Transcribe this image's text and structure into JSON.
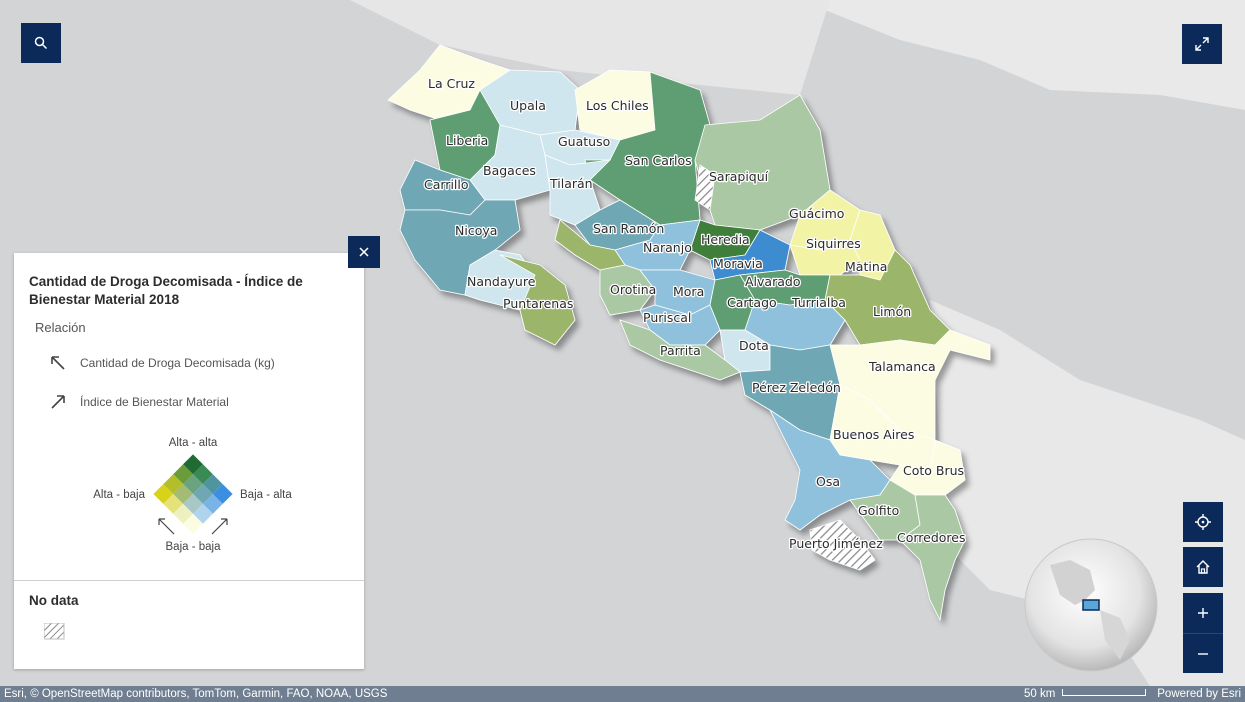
{
  "map": {
    "regions": [
      {
        "name": "La Cruz",
        "color": "#fbfce2"
      },
      {
        "name": "Upala",
        "color": "#cfe6ef"
      },
      {
        "name": "Los Chiles",
        "color": "#fbfce2"
      },
      {
        "name": "Liberia",
        "color": "#5e9e72"
      },
      {
        "name": "Guatuso",
        "color": "#cfe6ef"
      },
      {
        "name": "San Carlos",
        "color": "#5e9e72"
      },
      {
        "name": "Sarapiquí",
        "color": "#aac8a4"
      },
      {
        "name": "Bagaces",
        "color": "#cfe6ef"
      },
      {
        "name": "Carrillo",
        "color": "#6fa7b4"
      },
      {
        "name": "Tilarán",
        "color": "#cfe6ef"
      },
      {
        "name": "Guácimo",
        "color": "#f3f3a6"
      },
      {
        "name": "Nicoya",
        "color": "#6fa7b4"
      },
      {
        "name": "San Ramón",
        "color": "#6fa7b4"
      },
      {
        "name": "Heredia",
        "color": "#3f7f3a"
      },
      {
        "name": "Siquirres",
        "color": "#f3f3a6"
      },
      {
        "name": "Naranjo",
        "color": "#8fc0dc"
      },
      {
        "name": "Moravia",
        "color": "#3d8ccf"
      },
      {
        "name": "Matina",
        "color": "#f3f3a6"
      },
      {
        "name": "Nandayure",
        "color": "#cfe6ef"
      },
      {
        "name": "Alvarado",
        "color": "#5e9e72"
      },
      {
        "name": "Puntarenas",
        "color": "#9bb56a"
      },
      {
        "name": "Orotina",
        "color": "#aac8a4"
      },
      {
        "name": "Mora",
        "color": "#8fc0dc"
      },
      {
        "name": "Cartago",
        "color": "#5e9e72"
      },
      {
        "name": "Turrialba",
        "color": "#8fc0dc"
      },
      {
        "name": "Limón",
        "color": "#9bb56a"
      },
      {
        "name": "Puriscal",
        "color": "#8fc0dc"
      },
      {
        "name": "Dota",
        "color": "#cfe6ef"
      },
      {
        "name": "Parrita",
        "color": "#aac8a4"
      },
      {
        "name": "Talamanca",
        "color": "#fbfce2"
      },
      {
        "name": "Pérez Zeledón",
        "color": "#6fa7b4"
      },
      {
        "name": "Buenos Aires",
        "color": "#fbfce2"
      },
      {
        "name": "Coto Brus",
        "color": "#fbfce2"
      },
      {
        "name": "Osa",
        "color": "#8fc0dc"
      },
      {
        "name": "Golfito",
        "color": "#aac8a4"
      },
      {
        "name": "Corredores",
        "color": "#aac8a4"
      },
      {
        "name": "Puerto Jiménez",
        "color": "nodata"
      }
    ]
  },
  "controls": {
    "search_icon": "search-icon",
    "fullscreen_icon": "expand-icon",
    "close_icon": "close-icon",
    "locate_icon": "locate-icon",
    "home_icon": "home-icon",
    "zoom_in_icon": "plus-icon",
    "zoom_out_icon": "minus-icon"
  },
  "legend": {
    "title": "Cantidad de Droga Decomisada - Índice de Bienestar Material 2018",
    "relation_label": "Relación",
    "var1_label": "Cantidad de Droga Decomisada (kg)",
    "var2_label": "Índice de Bienestar Material",
    "diagram": {
      "top": "Alta - alta",
      "left": "Alta - baja",
      "right": "Baja - alta",
      "bottom": "Baja - baja"
    },
    "nodata_label": "No data",
    "colors": {
      "high_high": "#1f6b33",
      "low_low": "#fbfce2",
      "high_low": "#d9d21a",
      "low_high": "#3b8fe0",
      "nodata": "#ffffff"
    }
  },
  "attribution": {
    "text": "Esri, © OpenStreetMap contributors, TomTom, Garmin, FAO, NOAA, USGS",
    "scale_label": "50 km",
    "powered": "Powered by Esri"
  }
}
